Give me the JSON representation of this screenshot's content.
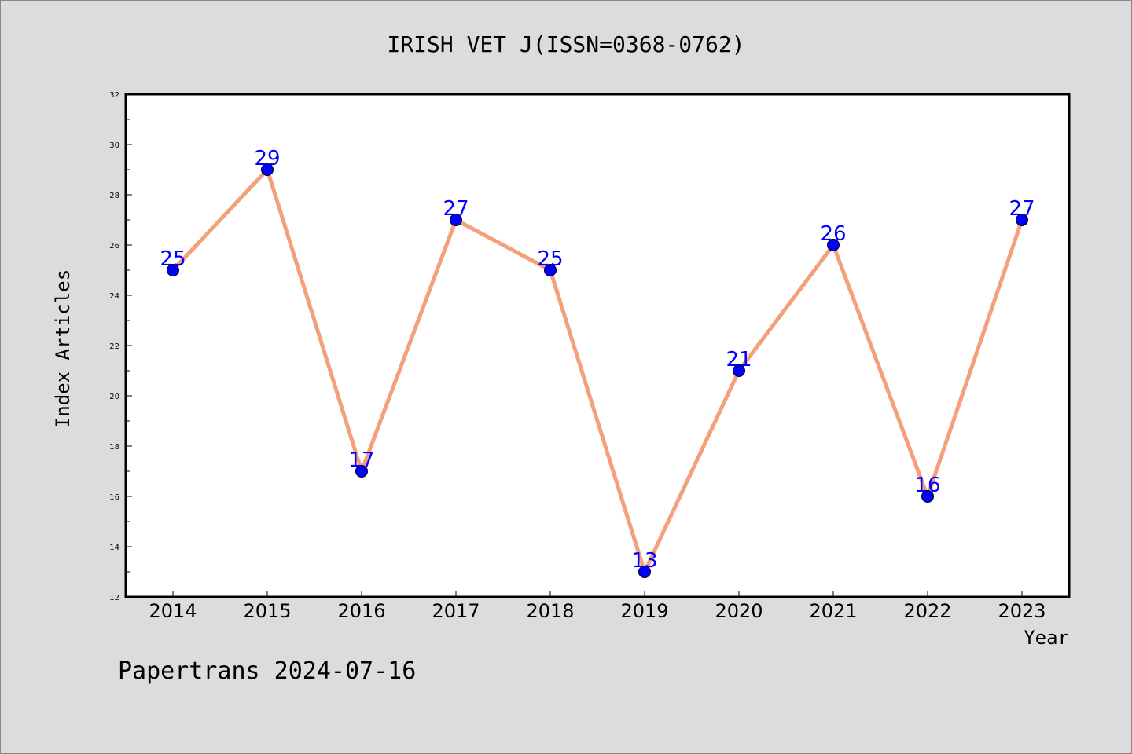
{
  "footer": "Papertrans 2024-07-16",
  "colors": {
    "background": "#dcdcdc",
    "plot_background": "#ffffff",
    "line": "#f4a07a",
    "marker": "#0000ff",
    "data_label": "#0000ff"
  },
  "chart_data": {
    "type": "line",
    "title": "IRISH VET J(ISSN=0368-0762)",
    "xlabel": "Year",
    "ylabel": "Index Articles",
    "x": [
      "2014",
      "2015",
      "2016",
      "2017",
      "2018",
      "2019",
      "2020",
      "2021",
      "2022",
      "2023"
    ],
    "series": [
      {
        "values": [
          25,
          29,
          17,
          27,
          25,
          13,
          21,
          26,
          16,
          27
        ]
      }
    ],
    "ylim": [
      12,
      32
    ],
    "yticks": [
      "12",
      "14",
      "16",
      "18",
      "20",
      "22",
      "24",
      "26",
      "28",
      "30",
      "32"
    ],
    "grid": false,
    "legend": "none",
    "data_labels": true
  }
}
